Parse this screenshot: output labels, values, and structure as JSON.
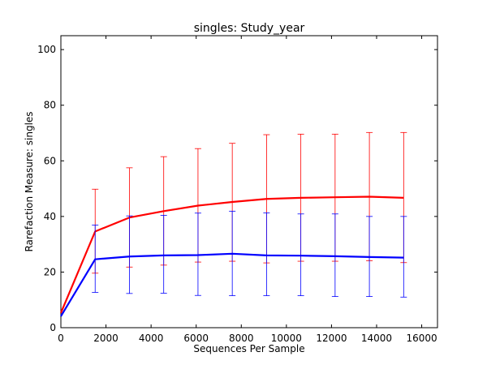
{
  "chart_data": {
    "type": "line",
    "title": "singles: Study_year",
    "xlabel": "Sequences Per Sample",
    "ylabel": "Rarefaction Measure: singles",
    "xlim": [
      0,
      16700
    ],
    "ylim": [
      0,
      105
    ],
    "x_ticks": [
      0,
      2000,
      4000,
      6000,
      8000,
      10000,
      12000,
      14000,
      16000
    ],
    "y_ticks": [
      0,
      20,
      40,
      60,
      80,
      100
    ],
    "x": [
      0,
      1520,
      3040,
      4560,
      6080,
      7600,
      9120,
      10640,
      12160,
      13680,
      15200
    ],
    "grid": false,
    "legend": "none",
    "series": [
      {
        "color": "#ff0000",
        "values": [
          5.3,
          34.6,
          39.6,
          41.9,
          43.9,
          45.2,
          46.3,
          46.7,
          46.9,
          47.1,
          46.7
        ],
        "err_low": [
          5.3,
          19.6,
          21.8,
          22.5,
          23.6,
          23.9,
          23.3,
          23.9,
          23.9,
          24.1,
          23.4
        ],
        "err_high": [
          5.3,
          49.8,
          57.5,
          61.5,
          64.4,
          66.3,
          69.4,
          69.6,
          69.6,
          70.2,
          70.2
        ]
      },
      {
        "color": "#0000ff",
        "values": [
          4.1,
          24.6,
          25.6,
          26.0,
          26.1,
          26.6,
          26.0,
          25.9,
          25.7,
          25.4,
          25.2
        ],
        "err_low": [
          4.1,
          12.7,
          12.3,
          12.4,
          11.6,
          11.5,
          11.5,
          11.5,
          11.2,
          11.2,
          11.0
        ],
        "err_high": [
          4.1,
          36.9,
          40.2,
          40.4,
          41.2,
          41.9,
          41.3,
          40.9,
          40.9,
          40.0,
          40.0
        ]
      }
    ]
  }
}
